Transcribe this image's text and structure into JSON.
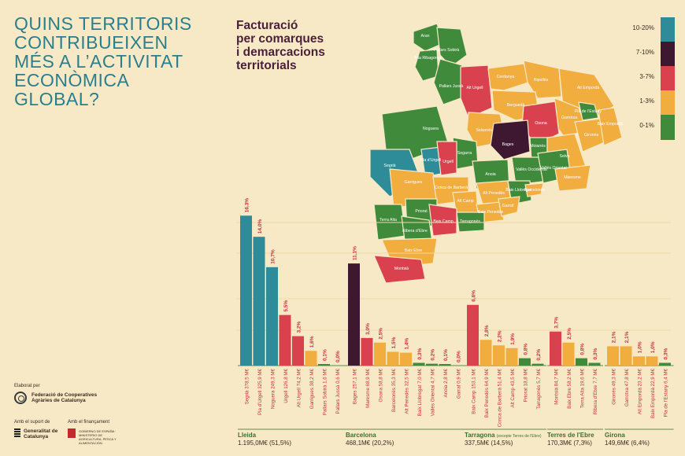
{
  "title": "QUINS TERRITORIS\nCONTRIBUEIXEN\nMÉS A L’ACTIVITAT\nECONÒMICA\nGLOBAL?",
  "subtitle": "Facturació\nper comarques\ni demarcacions\nterritorials",
  "colors": {
    "background": "#f8e9c6",
    "teal": "#2e8c99",
    "purple": "#3e1731",
    "red": "#d9414f",
    "orange": "#f2ad3f",
    "green": "#3f8a3b",
    "title": "#2b7f8d",
    "label_red": "#c8303e"
  },
  "legend": [
    {
      "label": "10-20%",
      "color": "#2e8c99"
    },
    {
      "label": "7-10%",
      "color": "#3e1731"
    },
    {
      "label": "3-7%",
      "color": "#d9414f"
    },
    {
      "label": "1-3%",
      "color": "#f2ad3f"
    },
    {
      "label": "0-1%",
      "color": "#3f8a3b"
    }
  ],
  "map": {
    "region_labels": [
      "Aran",
      "Alta Ribagorça",
      "Pallars Sobirà",
      "Pallars Jussà",
      "Alt Urgell",
      "Cerdanya",
      "Ripollès",
      "Alt Empordà",
      "Garrotxa",
      "Pla de l’Estany",
      "Berguedà",
      "Solsonès",
      "Osona",
      "Gironès",
      "Baix Empordà",
      "Noguera",
      "Segarra",
      "Bages",
      "Moianès",
      "Selva",
      "Segrià",
      "Pla d’Urgell",
      "Urgell",
      "Anoia",
      "Vallès Occidental",
      "Vallès Oriental",
      "Maresme",
      "Garrigues",
      "Conca de Barberà",
      "Alt Penedès",
      "Baix Llobregat",
      "Barcelonès",
      "Alt Camp",
      "Baix Penedès",
      "Garraf",
      "Priorat",
      "Tarragonès",
      "Terra Alta",
      "Ribera d’Ebre",
      "Baix Camp",
      "Baix Ebre",
      "Montsià"
    ]
  },
  "chart_data": {
    "type": "bar",
    "y_unit": "%",
    "groups": [
      {
        "name": "Lleida",
        "total": "1.195,0M€ (51,5%)",
        "bars": [
          {
            "label": "Segrià 378,5 M€",
            "value": 16.3,
            "value_label": "16,3%",
            "color": "teal"
          },
          {
            "label": "Pla d'Urgell 325,9 M€",
            "value": 14.0,
            "value_label": "14,0%",
            "color": "teal"
          },
          {
            "label": "Noguera 249,3 M€",
            "value": 10.7,
            "value_label": "10,7%",
            "color": "teal"
          },
          {
            "label": "Urgell 126,8 M€",
            "value": 5.5,
            "value_label": "5,5%",
            "color": "red"
          },
          {
            "label": "Alt Urgell 74,2 M€",
            "value": 3.2,
            "value_label": "3,2%",
            "color": "red"
          },
          {
            "label": "Garrigues 38,2 M€",
            "value": 1.6,
            "value_label": "1,6%",
            "color": "orange"
          },
          {
            "label": "Pallars Sobirà 1,6 M€",
            "value": 0.1,
            "value_label": "0,1%",
            "color": "green"
          },
          {
            "label": "Pallars Jussà 0,6 M€",
            "value": 0.0,
            "value_label": "0,0%",
            "color": "green"
          }
        ]
      },
      {
        "name": "Barcelona",
        "total": "468,1M€ (20,2%)",
        "bars": [
          {
            "label": "Bages 257,1 M€",
            "value": 11.1,
            "value_label": "11,1%",
            "color": "purple"
          },
          {
            "label": "Maresme 68,9 M€",
            "value": 3.0,
            "value_label": "3,0%",
            "color": "red"
          },
          {
            "label": "Osona 58,8 M€",
            "value": 2.5,
            "value_label": "2,5%",
            "color": "orange"
          },
          {
            "label": "Barcelonès 35,3 M€",
            "value": 1.5,
            "value_label": "1,5%",
            "color": "orange"
          },
          {
            "label": "Alt Penedès 32,5 M€",
            "value": 1.4,
            "value_label": "1,4%",
            "color": "orange"
          },
          {
            "label": "Baix Llobregat 7,0 M€",
            "value": 0.3,
            "value_label": "0,3%",
            "color": "green"
          },
          {
            "label": "Vallès Oriental 4,7 M€",
            "value": 0.2,
            "value_label": "0,2%",
            "color": "green"
          },
          {
            "label": "Anoia 2,8 M€",
            "value": 0.1,
            "value_label": "0,1%",
            "color": "green"
          },
          {
            "label": "Garraf 0,9 M€",
            "value": 0.0,
            "value_label": "0,0%",
            "color": "green"
          }
        ]
      },
      {
        "name": "Tarragona",
        "name_note": "(excepte Terres de l'Ebre)",
        "total": "337,5M€ (14,5%)",
        "bars": [
          {
            "label": "Baix Camp 153,1 M€",
            "value": 6.6,
            "value_label": "6,6%",
            "color": "red"
          },
          {
            "label": "Baix Penedès 64,9 M€",
            "value": 2.8,
            "value_label": "2,8%",
            "color": "orange"
          },
          {
            "label": "Conca de Barberà 51,4 M€",
            "value": 2.2,
            "value_label": "2,2%",
            "color": "orange"
          },
          {
            "label": "Alt Camp 43,5 M€",
            "value": 1.9,
            "value_label": "1,9%",
            "color": "orange"
          },
          {
            "label": "Priorat 18,8 M€",
            "value": 0.8,
            "value_label": "0,8%",
            "color": "green"
          },
          {
            "label": "Tarragonès 5,7 M€",
            "value": 0.2,
            "value_label": "0,2%",
            "color": "green"
          }
        ]
      },
      {
        "name": "Terres de l'Ebre",
        "total": "170,3M€ (7,3%)",
        "bars": [
          {
            "label": "Montsià 84,7 M€",
            "value": 3.7,
            "value_label": "3,7%",
            "color": "red"
          },
          {
            "label": "Baix Ebre 58,2 M€",
            "value": 2.5,
            "value_label": "2,5%",
            "color": "orange"
          },
          {
            "label": "Terra Alta 19,6 M€",
            "value": 0.8,
            "value_label": "0,8%",
            "color": "green"
          },
          {
            "label": "Ribera d'Ebre 7,7 M€",
            "value": 0.3,
            "value_label": "0,3%",
            "color": "green"
          }
        ]
      },
      {
        "name": "Girona",
        "total": "149,6M€ (6,4%)",
        "bars": [
          {
            "label": "Gironès 49,3 M€",
            "value": 2.1,
            "value_label": "2,1%",
            "color": "orange"
          },
          {
            "label": "Garrotxa 47,8 M€",
            "value": 2.1,
            "value_label": "2,1%",
            "color": "orange"
          },
          {
            "label": "Alt Empordà 23,2 M€",
            "value": 1.0,
            "value_label": "1,0%",
            "color": "orange"
          },
          {
            "label": "Baix Empordà 22,9 M€",
            "value": 1.0,
            "value_label": "1,0%",
            "color": "orange"
          },
          {
            "label": "Pla de l'Estany 6,4 M€",
            "value": 0.3,
            "value_label": "0,3%",
            "color": "green"
          }
        ]
      }
    ]
  },
  "credits": {
    "elaborat": "Elaborat per",
    "federacio": "Federació de Cooperatives Agràries de Catalunya",
    "suport": "Amb el suport de",
    "generalitat": "Generalitat de Catalunya",
    "finançament": "Amb el finançament",
    "gobierno": "GOBIERNO DE ESPAÑA · MINISTERIO DE AGRICULTURA, PESCA Y ALIMENTACIÓN"
  }
}
